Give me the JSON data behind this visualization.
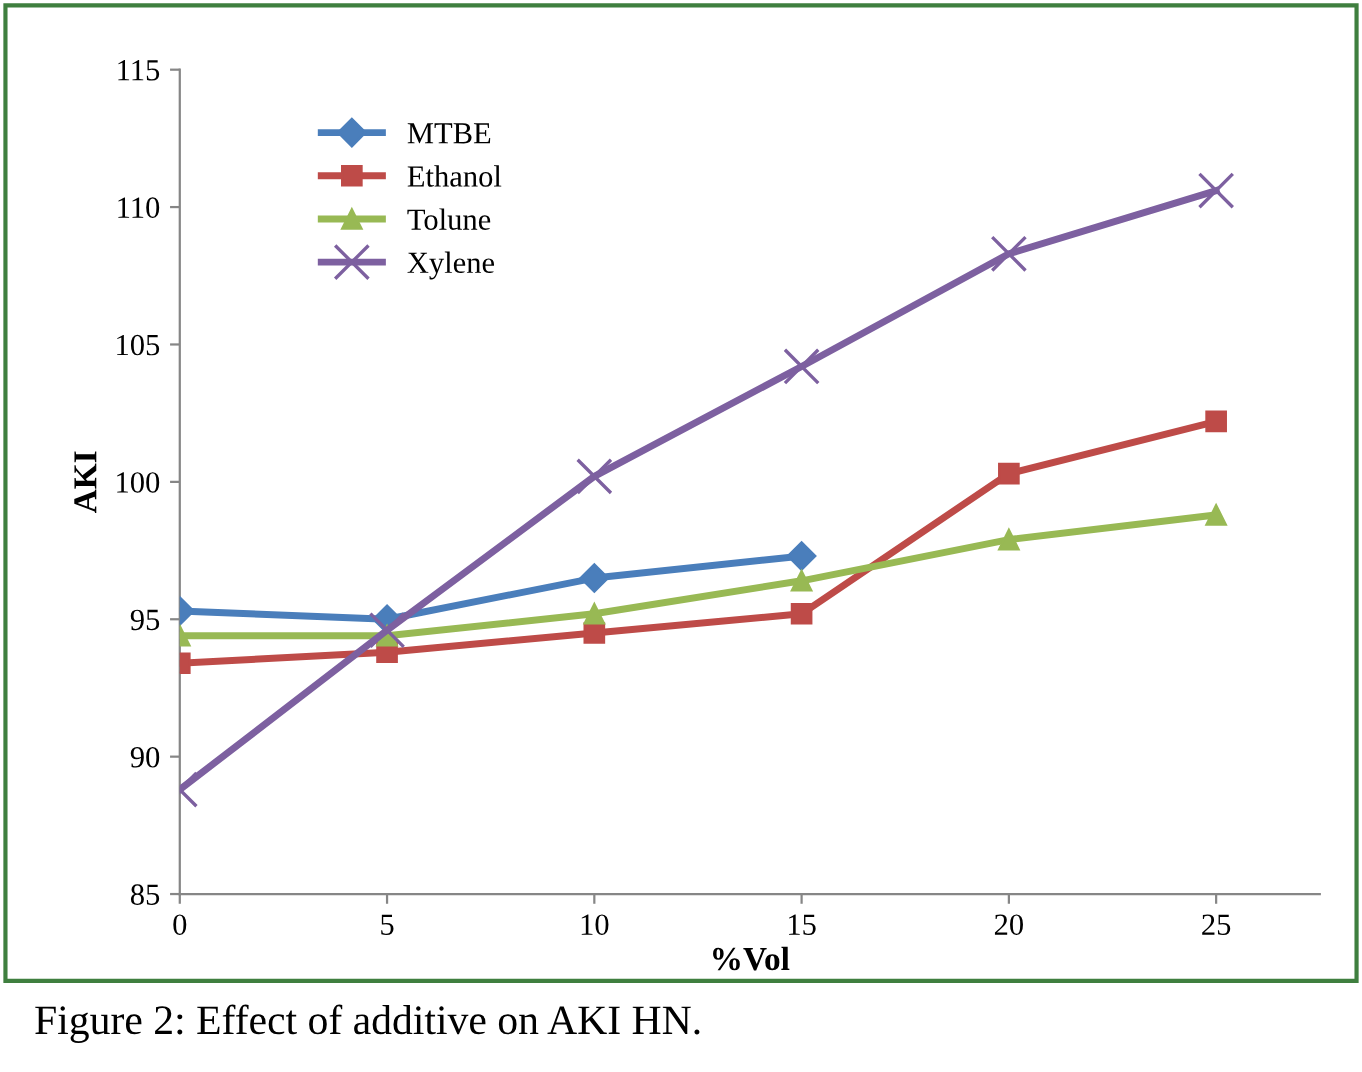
{
  "chart_data": {
    "type": "line",
    "xlabel": "%Vol",
    "ylabel": "AKI",
    "x": [
      0,
      5,
      10,
      15,
      20,
      25
    ],
    "series": [
      {
        "name": "MTBE",
        "color": "#4a7ebb",
        "marker": "diamond",
        "values": [
          95.3,
          95.0,
          96.5,
          97.3,
          null,
          null
        ]
      },
      {
        "name": "Ethanol",
        "color": "#be4b48",
        "marker": "square",
        "values": [
          93.4,
          93.8,
          94.5,
          95.2,
          100.3,
          102.2
        ]
      },
      {
        "name": "Tolune",
        "color": "#98b954",
        "marker": "triangle",
        "values": [
          94.4,
          94.4,
          95.2,
          96.4,
          97.9,
          98.8
        ]
      },
      {
        "name": "Xylene",
        "color": "#7d60a0",
        "marker": "cross",
        "values": [
          88.8,
          94.6,
          100.2,
          104.2,
          108.3,
          110.6
        ]
      }
    ],
    "xlim": [
      0,
      27.5
    ],
    "xticks": [
      0,
      5,
      10,
      15,
      20,
      25
    ],
    "ylim": [
      85,
      115
    ],
    "yticks": [
      85,
      90,
      95,
      100,
      105,
      110,
      115
    ],
    "grid": false,
    "legend": "top left",
    "annotations": [
      "Figure 2: Effect of additive on AKI HN."
    ]
  }
}
